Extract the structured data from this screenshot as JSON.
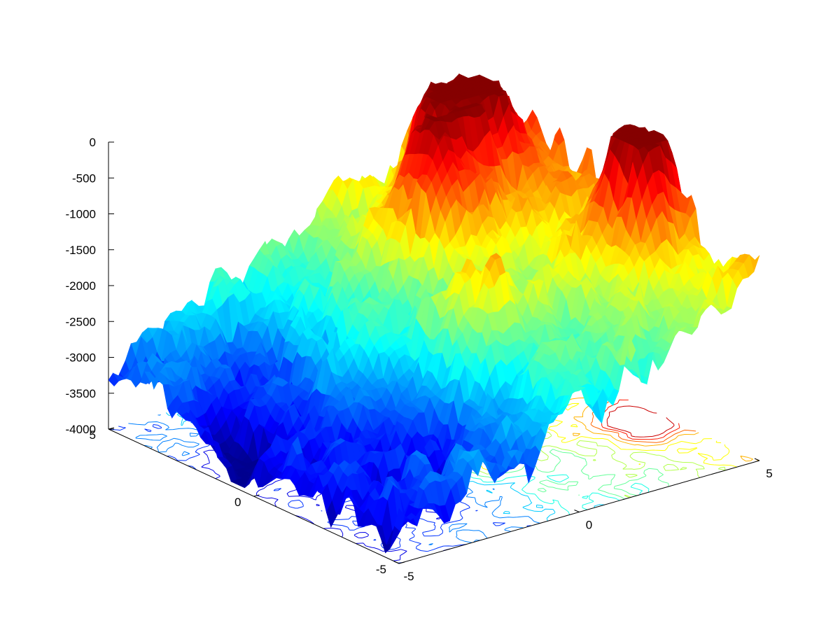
{
  "chart_data": {
    "type": "surface",
    "title": "",
    "xlabel": "",
    "ylabel": "",
    "zlabel": "",
    "xlim": [
      -5,
      5
    ],
    "ylim": [
      -5,
      5
    ],
    "zlim": [
      -4000,
      0
    ],
    "x_ticks": [
      "-5",
      "0",
      "5"
    ],
    "y_ticks": [
      "-5",
      "0",
      "5"
    ],
    "z_ticks": [
      "0",
      "-500",
      "-1000",
      "-1500",
      "-2000",
      "-2500",
      "-3000",
      "-3500",
      "-4000"
    ],
    "colormap": "jet",
    "has_contour_projection": true,
    "peaks": [
      {
        "x": 3.2,
        "y": 2.8,
        "z": -150
      },
      {
        "x": 1.5,
        "y": 1.8,
        "z": -400
      },
      {
        "x": 4.3,
        "y": -1.6,
        "z": -450
      },
      {
        "x": 0.3,
        "y": -1.3,
        "z": -1300
      }
    ],
    "troughs": [
      {
        "x": -4.0,
        "y": 1.0,
        "z": -3700
      },
      {
        "x": -2.0,
        "y": -2.0,
        "z": -3800
      },
      {
        "x": -2.5,
        "y": 3.0,
        "z": -3400
      }
    ],
    "base_level": -2300
  }
}
